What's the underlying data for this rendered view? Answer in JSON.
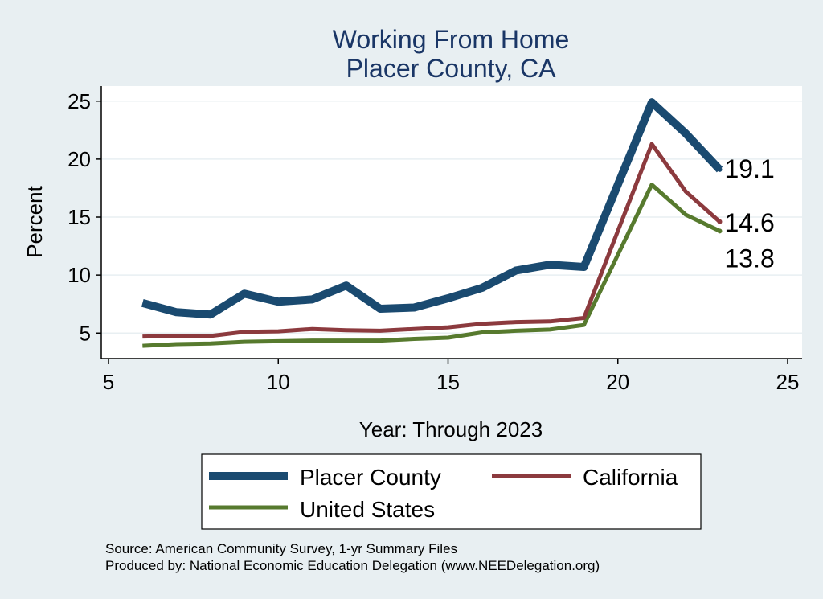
{
  "chart_data": {
    "type": "line",
    "title_lines": [
      "Working From Home",
      "Placer County, CA"
    ],
    "xlabel": "Year: Through 2023",
    "ylabel": "Percent",
    "xlim": [
      5,
      25
    ],
    "ylim": [
      2.8,
      26.3
    ],
    "xticks": [
      5,
      10,
      15,
      20,
      25
    ],
    "yticks": [
      5,
      10,
      15,
      20,
      25
    ],
    "grid": true,
    "legend_position": "bottom",
    "series": [
      {
        "name": "Placer County",
        "color": "#1a4a70",
        "x": [
          6,
          7,
          8,
          9,
          10,
          11,
          12,
          13,
          14,
          15,
          16,
          17,
          18,
          19,
          21,
          22,
          23
        ],
        "y": [
          7.6,
          6.8,
          6.6,
          8.4,
          7.7,
          7.9,
          9.1,
          7.1,
          7.2,
          8.0,
          8.9,
          10.4,
          10.9,
          10.7,
          24.9,
          22.2,
          19.1
        ],
        "end_label": "19.1"
      },
      {
        "name": "California",
        "color": "#8c3a3e",
        "x": [
          6,
          7,
          8,
          9,
          10,
          11,
          12,
          13,
          14,
          15,
          16,
          17,
          18,
          19,
          21,
          22,
          23
        ],
        "y": [
          4.7,
          4.75,
          4.75,
          5.1,
          5.15,
          5.35,
          5.25,
          5.2,
          5.35,
          5.5,
          5.8,
          5.95,
          6.0,
          6.3,
          21.3,
          17.2,
          14.6
        ],
        "end_label": "14.6"
      },
      {
        "name": "United States",
        "color": "#577a2e",
        "x": [
          6,
          7,
          8,
          9,
          10,
          11,
          12,
          13,
          14,
          15,
          16,
          17,
          18,
          19,
          21,
          22,
          23
        ],
        "y": [
          3.9,
          4.05,
          4.1,
          4.25,
          4.3,
          4.35,
          4.35,
          4.35,
          4.5,
          4.6,
          5.05,
          5.2,
          5.3,
          5.7,
          17.8,
          15.2,
          13.8
        ],
        "end_label": "13.8"
      }
    ],
    "notes": [
      "Source: American Community Survey, 1-yr Summary Files",
      "Produced by: National Economic Education Delegation (www.NEEDelegation.org)"
    ]
  }
}
